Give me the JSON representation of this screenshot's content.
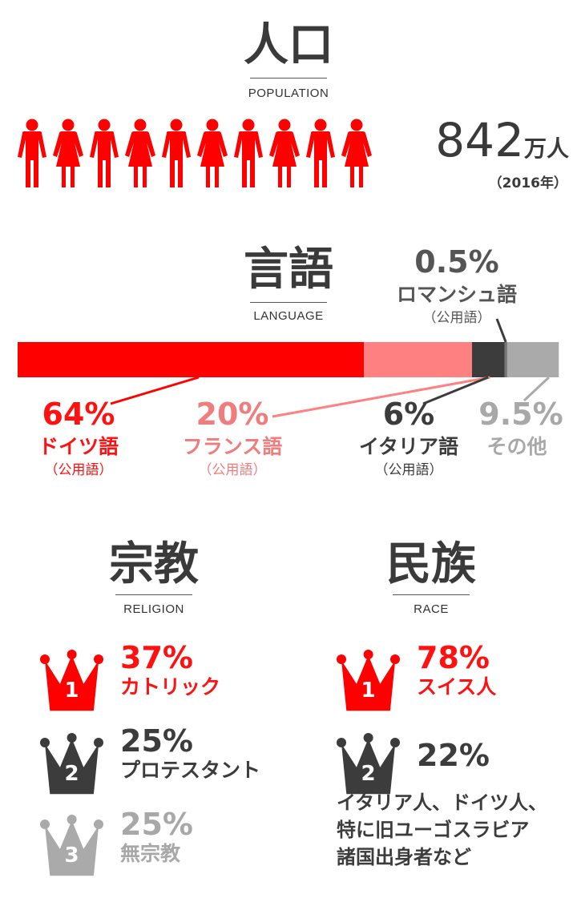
{
  "colors": {
    "red": "#ff0000",
    "pink": "#ff8080",
    "dark": "#3c3c3c",
    "darkgray": "#777777",
    "gray": "#aaaaaa",
    "text": "#3a3a3a"
  },
  "population": {
    "title": "人口",
    "subtitle": "POPULATION",
    "icons": [
      "man",
      "woman",
      "man",
      "woman",
      "man",
      "woman",
      "man",
      "woman",
      "man",
      "woman"
    ],
    "value": "842",
    "unit": "万人",
    "year": "（2016年）"
  },
  "language": {
    "title": "言語",
    "subtitle": "LANGUAGE",
    "top_label": {
      "pct": "0.5%",
      "name": "ロマンシュ語",
      "note": "（公用語）"
    },
    "bottom_labels": [
      {
        "pct": "64%",
        "name": "ドイツ語",
        "note": "（公用語）"
      },
      {
        "pct": "20%",
        "name": "フランス語",
        "note": "（公用語）"
      },
      {
        "pct": "6%",
        "name": "イタリア語",
        "note": "（公用語）"
      },
      {
        "pct": "9.5%",
        "name": "その他",
        "note": ""
      }
    ]
  },
  "religion": {
    "title": "宗教",
    "subtitle": "RELIGION",
    "items": [
      {
        "rank": "1",
        "pct": "37%",
        "name": "カトリック"
      },
      {
        "rank": "2",
        "pct": "25%",
        "name": "プロテスタント"
      },
      {
        "rank": "3",
        "pct": "25%",
        "name": "無宗教"
      }
    ]
  },
  "race": {
    "title": "民族",
    "subtitle": "RACE",
    "items": [
      {
        "rank": "1",
        "pct": "78%",
        "name": "スイス人"
      },
      {
        "rank": "2",
        "pct": "22%",
        "name": "イタリア人、ドイツ人、",
        "name2": "特に旧ユーゴスラビア",
        "name3": "諸国出身者など"
      }
    ]
  },
  "chart_data": [
    {
      "type": "bar",
      "stacked": true,
      "orientation": "horizontal",
      "title": "言語",
      "categories": [
        "ドイツ語",
        "フランス語",
        "イタリア語",
        "ロマンシュ語",
        "その他"
      ],
      "values": [
        64,
        20,
        6,
        0.5,
        9.5
      ],
      "colors": [
        "#ff0000",
        "#ff8080",
        "#3c3c3c",
        "#777777",
        "#aaaaaa"
      ]
    }
  ]
}
